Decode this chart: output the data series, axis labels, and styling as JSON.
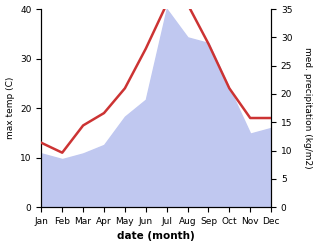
{
  "months": [
    "Jan",
    "Feb",
    "Mar",
    "Apr",
    "May",
    "Jun",
    "Jul",
    "Aug",
    "Sep",
    "Oct",
    "Nov",
    "Dec"
  ],
  "month_indices": [
    1,
    2,
    3,
    4,
    5,
    6,
    7,
    8,
    9,
    10,
    11,
    12
  ],
  "temp": [
    13.0,
    11.0,
    16.5,
    19.0,
    24.0,
    32.0,
    41.0,
    41.0,
    33.0,
    24.0,
    18.0,
    18.0
  ],
  "precip": [
    9.5,
    8.5,
    9.5,
    11.0,
    16.0,
    19.0,
    35.0,
    30.0,
    29.0,
    21.0,
    13.0,
    14.0
  ],
  "temp_color": "#cc3333",
  "precip_color": "#c0c8f0",
  "temp_lw": 1.8,
  "left_ylim": [
    0,
    40
  ],
  "right_ylim": [
    0,
    35
  ],
  "left_yticks": [
    0,
    10,
    20,
    30,
    40
  ],
  "right_yticks": [
    0,
    5,
    10,
    15,
    20,
    25,
    30,
    35
  ],
  "xlabel": "date (month)",
  "ylabel_left": "max temp (C)",
  "ylabel_right": "med. precipitation (kg/m2)",
  "background_color": "#ffffff"
}
